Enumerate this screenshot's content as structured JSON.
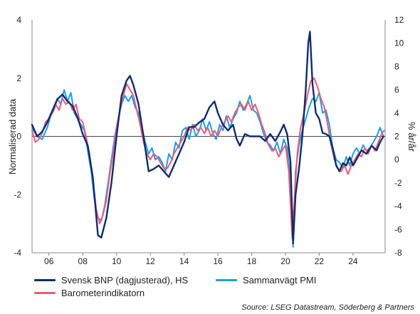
{
  "chart_data": {
    "type": "line",
    "x_range": [
      2005.0,
      2025.9
    ],
    "x_ticks": [
      "06",
      "08",
      "10",
      "12",
      "14",
      "16",
      "18",
      "20",
      "22",
      "24"
    ],
    "x_tick_years": [
      2006,
      2008,
      2010,
      2012,
      2014,
      2016,
      2018,
      2020,
      2022,
      2024
    ],
    "y_left": {
      "label": "Normaliserad data",
      "range": [
        -4,
        4
      ],
      "ticks": [
        "-4",
        "-2",
        "0",
        "2",
        "4"
      ]
    },
    "y_right": {
      "label": "% år/år",
      "range": [
        -8,
        12
      ],
      "ticks": [
        "-8",
        "-6",
        "-4",
        "-2",
        "0",
        "2",
        "4",
        "6",
        "8",
        "10",
        "12"
      ]
    },
    "zero_line": true,
    "series": [
      {
        "name": "Sammanvägt PMI",
        "color": "#1aa0e0",
        "axis": "left",
        "points": [
          [
            2005.0,
            0.3
          ],
          [
            2005.3,
            0.0
          ],
          [
            2005.6,
            -0.1
          ],
          [
            2005.9,
            0.3
          ],
          [
            2006.1,
            0.7
          ],
          [
            2006.3,
            0.9
          ],
          [
            2006.5,
            1.3
          ],
          [
            2006.7,
            1.1
          ],
          [
            2006.9,
            1.6
          ],
          [
            2007.1,
            1.2
          ],
          [
            2007.3,
            1.5
          ],
          [
            2007.5,
            0.8
          ],
          [
            2007.7,
            0.6
          ],
          [
            2007.9,
            0.4
          ],
          [
            2008.1,
            0.2
          ],
          [
            2008.3,
            -0.5
          ],
          [
            2008.5,
            -1.2
          ],
          [
            2008.7,
            -2.2
          ],
          [
            2008.9,
            -2.8
          ],
          [
            2009.1,
            -2.9
          ],
          [
            2009.3,
            -2.4
          ],
          [
            2009.5,
            -1.6
          ],
          [
            2009.7,
            -0.8
          ],
          [
            2009.9,
            0.0
          ],
          [
            2010.1,
            0.6
          ],
          [
            2010.3,
            1.1
          ],
          [
            2010.5,
            1.4
          ],
          [
            2010.7,
            1.2
          ],
          [
            2010.9,
            1.4
          ],
          [
            2011.1,
            1.0
          ],
          [
            2011.3,
            0.8
          ],
          [
            2011.5,
            0.3
          ],
          [
            2011.7,
            -0.2
          ],
          [
            2011.9,
            -0.6
          ],
          [
            2012.1,
            -0.4
          ],
          [
            2012.3,
            -0.8
          ],
          [
            2012.5,
            -0.7
          ],
          [
            2012.7,
            -0.9
          ],
          [
            2012.9,
            -1.2
          ],
          [
            2013.1,
            -0.6
          ],
          [
            2013.3,
            -0.8
          ],
          [
            2013.5,
            -0.2
          ],
          [
            2013.7,
            -0.4
          ],
          [
            2013.9,
            0.2
          ],
          [
            2014.1,
            0.3
          ],
          [
            2014.3,
            -0.1
          ],
          [
            2014.5,
            0.4
          ],
          [
            2014.7,
            0.0
          ],
          [
            2014.9,
            0.2
          ],
          [
            2015.1,
            0.6
          ],
          [
            2015.3,
            0.2
          ],
          [
            2015.5,
            0.5
          ],
          [
            2015.7,
            0.1
          ],
          [
            2015.9,
            -0.1
          ],
          [
            2016.1,
            0.4
          ],
          [
            2016.3,
            0.2
          ],
          [
            2016.5,
            0.7
          ],
          [
            2016.7,
            0.3
          ],
          [
            2016.9,
            0.6
          ],
          [
            2017.1,
            0.8
          ],
          [
            2017.3,
            1.2
          ],
          [
            2017.5,
            0.9
          ],
          [
            2017.7,
            1.1
          ],
          [
            2017.9,
            1.4
          ],
          [
            2018.1,
            0.9
          ],
          [
            2018.3,
            0.8
          ],
          [
            2018.5,
            0.5
          ],
          [
            2018.7,
            0.1
          ],
          [
            2018.9,
            -0.2
          ],
          [
            2019.1,
            -0.3
          ],
          [
            2019.3,
            -0.5
          ],
          [
            2019.5,
            -0.2
          ],
          [
            2019.7,
            -0.6
          ],
          [
            2019.9,
            -0.1
          ],
          [
            2020.1,
            -0.4
          ],
          [
            2020.3,
            -1.5
          ],
          [
            2020.45,
            -3.8
          ],
          [
            2020.6,
            -1.2
          ],
          [
            2020.8,
            -0.3
          ],
          [
            2021.0,
            0.2
          ],
          [
            2021.2,
            0.6
          ],
          [
            2021.4,
            1.0
          ],
          [
            2021.6,
            1.3
          ],
          [
            2021.8,
            1.2
          ],
          [
            2022.0,
            1.5
          ],
          [
            2022.2,
            0.8
          ],
          [
            2022.4,
            0.9
          ],
          [
            2022.6,
            0.4
          ],
          [
            2022.8,
            -0.4
          ],
          [
            2023.0,
            -0.8
          ],
          [
            2023.2,
            -0.9
          ],
          [
            2023.4,
            -1.1
          ],
          [
            2023.6,
            -0.7
          ],
          [
            2023.8,
            -1.0
          ],
          [
            2024.0,
            -0.6
          ],
          [
            2024.2,
            -0.4
          ],
          [
            2024.4,
            -0.6
          ],
          [
            2024.6,
            -0.3
          ],
          [
            2024.8,
            -0.5
          ],
          [
            2025.0,
            -0.4
          ],
          [
            2025.2,
            -0.2
          ],
          [
            2025.4,
            0.0
          ],
          [
            2025.6,
            0.3
          ],
          [
            2025.8,
            0.0
          ]
        ]
      },
      {
        "name": "Barometerindikatorn",
        "color": "#ef5a78",
        "axis": "left",
        "points": [
          [
            2005.0,
            0.2
          ],
          [
            2005.2,
            -0.2
          ],
          [
            2005.4,
            -0.1
          ],
          [
            2005.6,
            0.1
          ],
          [
            2005.8,
            0.5
          ],
          [
            2006.0,
            0.6
          ],
          [
            2006.2,
            0.8
          ],
          [
            2006.4,
            1.1
          ],
          [
            2006.6,
            0.9
          ],
          [
            2006.8,
            1.3
          ],
          [
            2007.0,
            1.1
          ],
          [
            2007.2,
            1.2
          ],
          [
            2007.4,
            0.9
          ],
          [
            2007.6,
            1.1
          ],
          [
            2007.8,
            0.6
          ],
          [
            2008.0,
            0.5
          ],
          [
            2008.2,
            0.0
          ],
          [
            2008.4,
            -0.6
          ],
          [
            2008.6,
            -1.5
          ],
          [
            2008.8,
            -2.5
          ],
          [
            2009.0,
            -3.0
          ],
          [
            2009.2,
            -2.7
          ],
          [
            2009.4,
            -2.2
          ],
          [
            2009.6,
            -1.3
          ],
          [
            2009.8,
            -0.6
          ],
          [
            2010.0,
            0.3
          ],
          [
            2010.2,
            0.9
          ],
          [
            2010.4,
            1.4
          ],
          [
            2010.6,
            1.8
          ],
          [
            2010.8,
            1.6
          ],
          [
            2011.0,
            1.4
          ],
          [
            2011.2,
            0.9
          ],
          [
            2011.4,
            0.4
          ],
          [
            2011.6,
            -0.2
          ],
          [
            2011.8,
            -0.6
          ],
          [
            2012.0,
            -0.8
          ],
          [
            2012.2,
            -0.6
          ],
          [
            2012.4,
            -0.7
          ],
          [
            2012.6,
            -0.9
          ],
          [
            2012.8,
            -1.1
          ],
          [
            2013.0,
            -1.1
          ],
          [
            2013.2,
            -0.9
          ],
          [
            2013.4,
            -0.6
          ],
          [
            2013.6,
            -0.4
          ],
          [
            2013.8,
            -0.2
          ],
          [
            2014.0,
            0.0
          ],
          [
            2014.2,
            0.3
          ],
          [
            2014.4,
            0.2
          ],
          [
            2014.6,
            0.4
          ],
          [
            2014.8,
            0.2
          ],
          [
            2015.0,
            0.3
          ],
          [
            2015.2,
            0.1
          ],
          [
            2015.4,
            0.3
          ],
          [
            2015.6,
            0.0
          ],
          [
            2015.8,
            0.2
          ],
          [
            2016.0,
            0.0
          ],
          [
            2016.2,
            0.3
          ],
          [
            2016.4,
            0.5
          ],
          [
            2016.6,
            0.7
          ],
          [
            2016.8,
            0.5
          ],
          [
            2017.0,
            0.8
          ],
          [
            2017.2,
            1.0
          ],
          [
            2017.4,
            1.1
          ],
          [
            2017.6,
            0.9
          ],
          [
            2017.8,
            1.2
          ],
          [
            2018.0,
            0.9
          ],
          [
            2018.2,
            1.1
          ],
          [
            2018.4,
            0.8
          ],
          [
            2018.6,
            0.4
          ],
          [
            2018.8,
            0.1
          ],
          [
            2019.0,
            -0.3
          ],
          [
            2019.2,
            -0.5
          ],
          [
            2019.4,
            -0.4
          ],
          [
            2019.6,
            -0.7
          ],
          [
            2019.8,
            -0.5
          ],
          [
            2020.0,
            -0.3
          ],
          [
            2020.2,
            -1.2
          ],
          [
            2020.4,
            -3.5
          ],
          [
            2020.55,
            -2.0
          ],
          [
            2020.7,
            -0.6
          ],
          [
            2020.9,
            0.3
          ],
          [
            2021.1,
            0.8
          ],
          [
            2021.3,
            1.4
          ],
          [
            2021.5,
            1.9
          ],
          [
            2021.7,
            2.0
          ],
          [
            2021.9,
            1.7
          ],
          [
            2022.1,
            1.3
          ],
          [
            2022.3,
            1.0
          ],
          [
            2022.5,
            0.4
          ],
          [
            2022.7,
            -0.3
          ],
          [
            2022.9,
            -0.8
          ],
          [
            2023.1,
            -1.1
          ],
          [
            2023.3,
            -1.2
          ],
          [
            2023.5,
            -1.0
          ],
          [
            2023.7,
            -1.3
          ],
          [
            2023.9,
            -1.0
          ],
          [
            2024.1,
            -0.8
          ],
          [
            2024.3,
            -0.6
          ],
          [
            2024.5,
            -0.7
          ],
          [
            2024.7,
            -0.4
          ],
          [
            2024.9,
            -0.6
          ],
          [
            2025.1,
            -0.3
          ],
          [
            2025.3,
            -0.5
          ],
          [
            2025.5,
            -0.2
          ],
          [
            2025.7,
            0.1
          ],
          [
            2025.85,
            0.2
          ]
        ]
      },
      {
        "name": "Svensk BNP (dagjusterad), HS",
        "color": "#0f2d6b",
        "axis": "right",
        "points": [
          [
            2005.0,
            3.0
          ],
          [
            2005.3,
            2.0
          ],
          [
            2005.6,
            2.4
          ],
          [
            2005.9,
            3.2
          ],
          [
            2006.2,
            4.2
          ],
          [
            2006.5,
            5.2
          ],
          [
            2006.8,
            5.6
          ],
          [
            2007.1,
            5.0
          ],
          [
            2007.4,
            4.6
          ],
          [
            2007.7,
            3.6
          ],
          [
            2008.0,
            2.2
          ],
          [
            2008.3,
            1.2
          ],
          [
            2008.6,
            -1.5
          ],
          [
            2008.9,
            -6.5
          ],
          [
            2009.1,
            -6.7
          ],
          [
            2009.4,
            -5.0
          ],
          [
            2009.7,
            -2.0
          ],
          [
            2010.0,
            2.0
          ],
          [
            2010.3,
            5.5
          ],
          [
            2010.6,
            6.8
          ],
          [
            2010.8,
            7.2
          ],
          [
            2011.0,
            6.4
          ],
          [
            2011.3,
            4.8
          ],
          [
            2011.6,
            2.0
          ],
          [
            2011.9,
            -1.0
          ],
          [
            2012.2,
            -0.8
          ],
          [
            2012.5,
            -0.5
          ],
          [
            2012.8,
            -1.0
          ],
          [
            2013.1,
            -1.5
          ],
          [
            2013.4,
            -0.5
          ],
          [
            2013.7,
            0.5
          ],
          [
            2014.0,
            1.5
          ],
          [
            2014.3,
            2.8
          ],
          [
            2014.6,
            2.8
          ],
          [
            2014.9,
            3.2
          ],
          [
            2015.2,
            3.5
          ],
          [
            2015.5,
            4.5
          ],
          [
            2015.8,
            5.0
          ],
          [
            2016.0,
            4.0
          ],
          [
            2016.3,
            3.0
          ],
          [
            2016.6,
            2.5
          ],
          [
            2016.9,
            3.0
          ],
          [
            2017.1,
            1.8
          ],
          [
            2017.3,
            1.2
          ],
          [
            2017.6,
            2.2
          ],
          [
            2017.9,
            2.0
          ],
          [
            2018.2,
            2.0
          ],
          [
            2018.5,
            2.0
          ],
          [
            2018.8,
            1.6
          ],
          [
            2019.1,
            2.2
          ],
          [
            2019.4,
            1.6
          ],
          [
            2019.7,
            2.4
          ],
          [
            2019.9,
            3.0
          ],
          [
            2020.1,
            2.2
          ],
          [
            2020.3,
            -0.2
          ],
          [
            2020.45,
            -7.2
          ],
          [
            2020.6,
            -3.0
          ],
          [
            2020.8,
            -0.8
          ],
          [
            2021.0,
            2.0
          ],
          [
            2021.2,
            6.0
          ],
          [
            2021.35,
            10.0
          ],
          [
            2021.45,
            11.0
          ],
          [
            2021.6,
            6.5
          ],
          [
            2021.8,
            4.0
          ],
          [
            2022.0,
            3.5
          ],
          [
            2022.2,
            2.3
          ],
          [
            2022.4,
            2.2
          ],
          [
            2022.6,
            2.0
          ],
          [
            2022.8,
            1.0
          ],
          [
            2023.0,
            -0.5
          ],
          [
            2023.2,
            -1.0
          ],
          [
            2023.4,
            -0.3
          ],
          [
            2023.6,
            -0.5
          ],
          [
            2023.8,
            0.2
          ],
          [
            2024.0,
            -0.5
          ],
          [
            2024.2,
            0.0
          ],
          [
            2024.5,
            0.8
          ],
          [
            2024.8,
            0.5
          ],
          [
            2025.1,
            1.2
          ],
          [
            2025.4,
            0.8
          ],
          [
            2025.6,
            1.5
          ],
          [
            2025.8,
            2.0
          ]
        ]
      }
    ]
  },
  "legend": {
    "bnp_label": "Svensk BNP (dagjusterad), HS",
    "pmi_label": "Sammanvägt PMI",
    "baro_label": "Barometerindikatorn"
  },
  "source": "Source: LSEG Datastream, Söderberg & Partners"
}
